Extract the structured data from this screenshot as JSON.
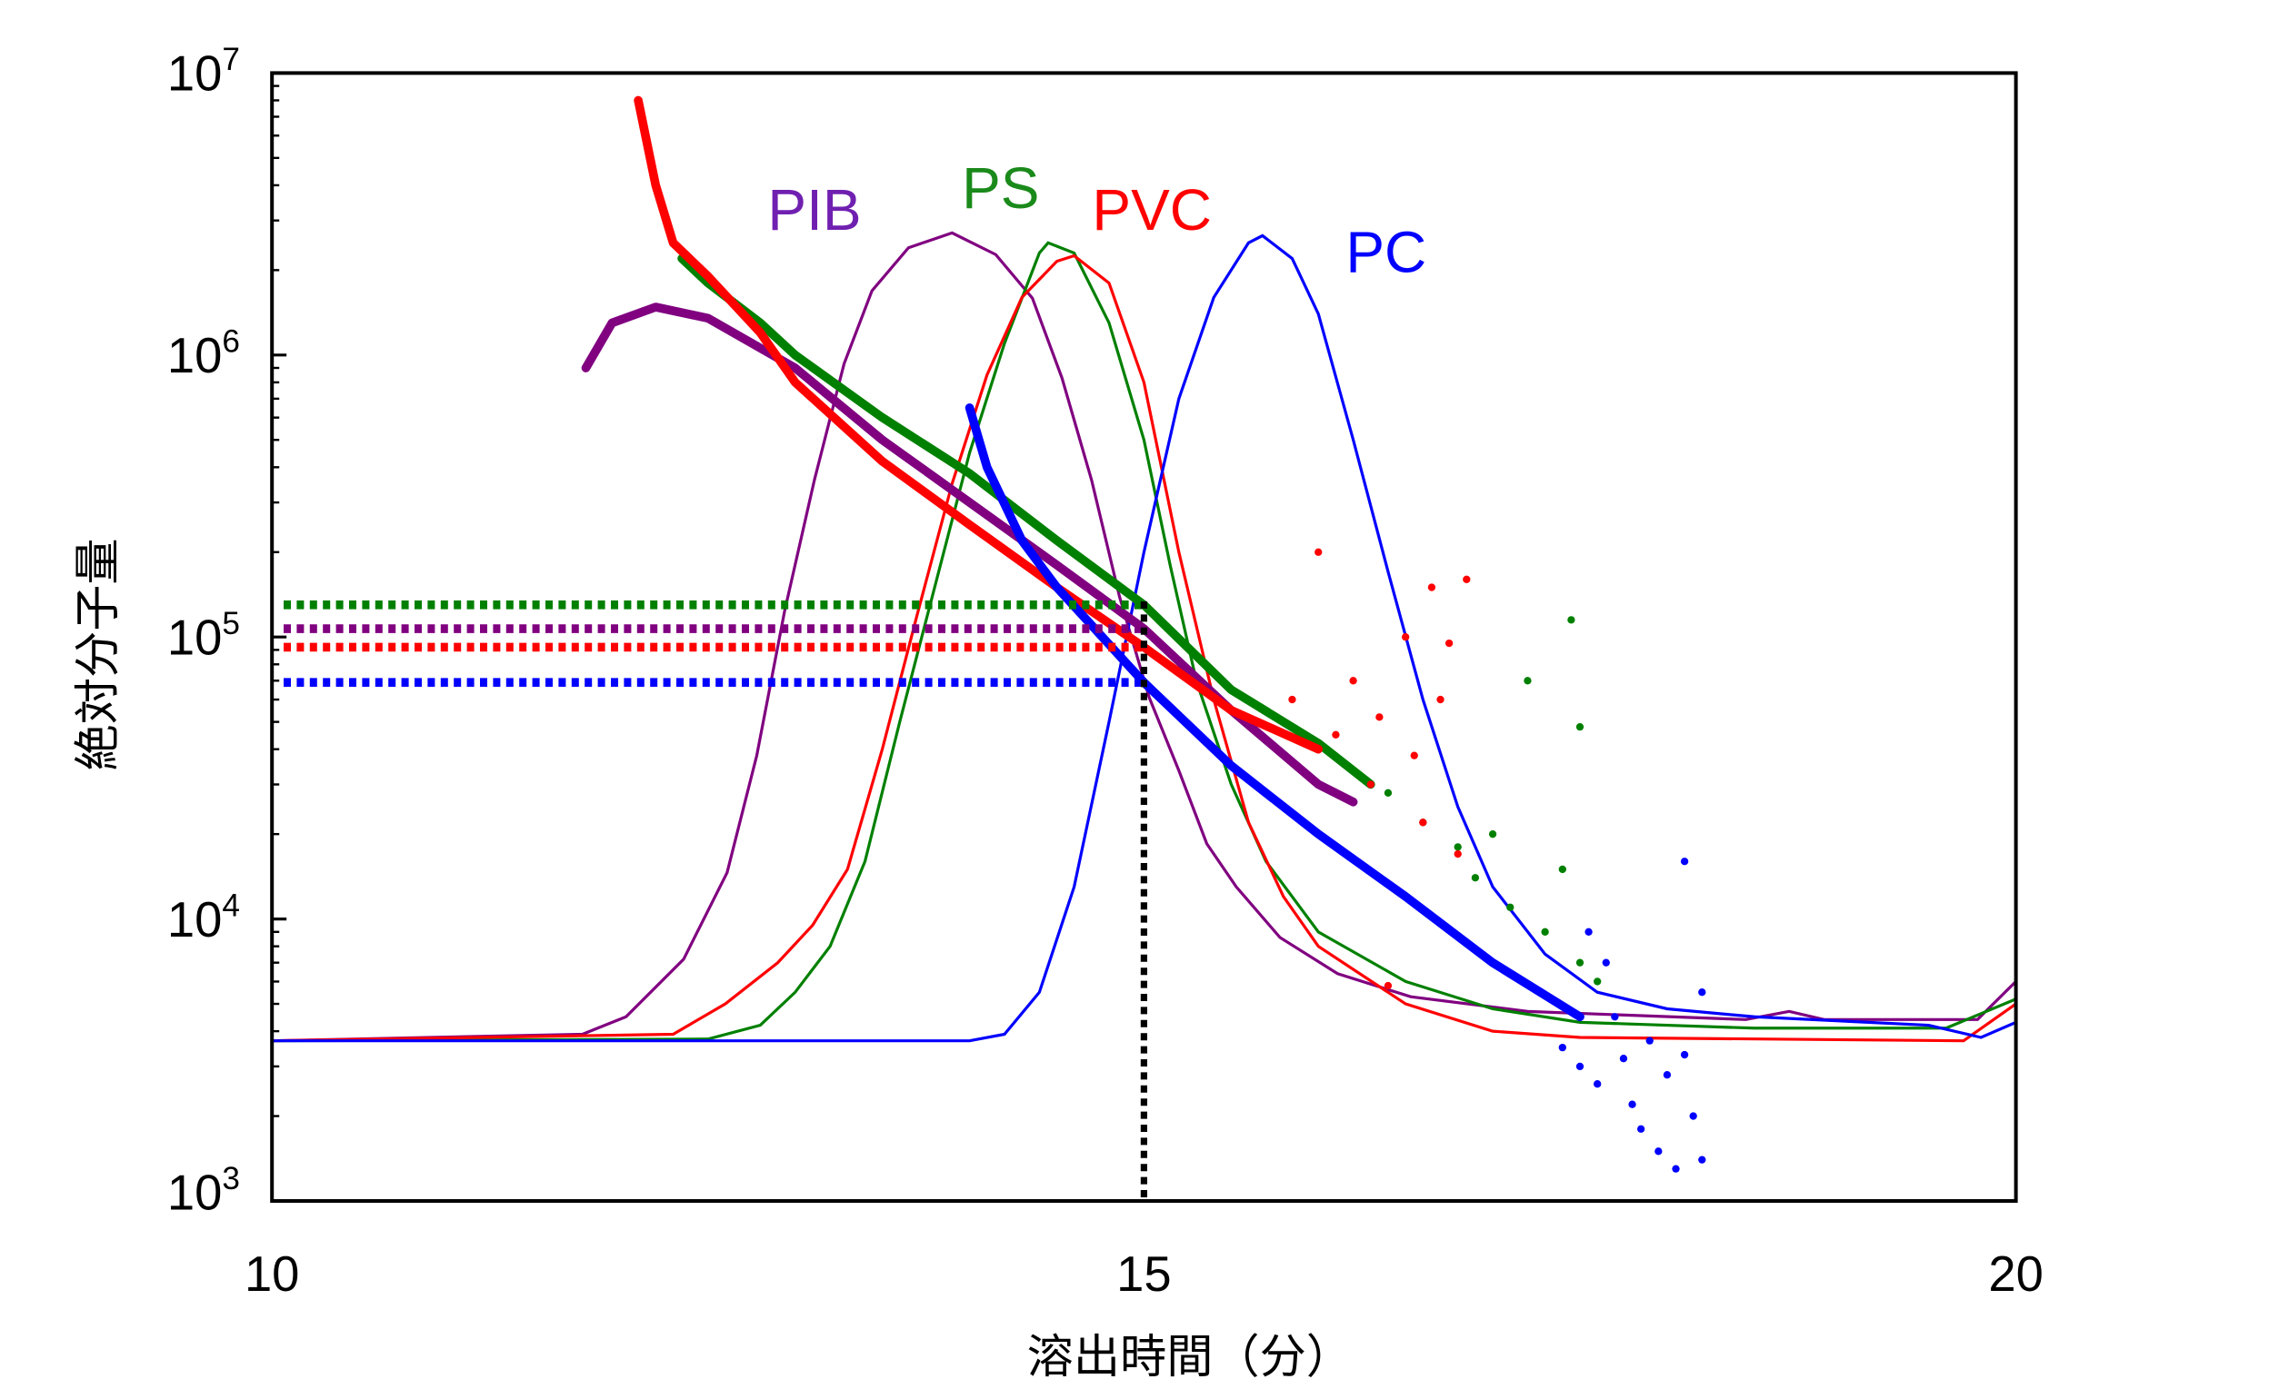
{
  "chart_data": {
    "type": "line",
    "xlabel": "溶出時間（分）",
    "ylabel": "絶対分子量",
    "xlim": [
      10,
      20
    ],
    "ylim": [
      1000,
      10000000
    ],
    "yscale": "log",
    "grid": false,
    "x_ticks": [
      {
        "value": 10,
        "label": "10"
      },
      {
        "value": 15,
        "label": "15"
      },
      {
        "value": 20,
        "label": "20"
      }
    ],
    "y_ticks": [
      {
        "value": 1000,
        "base": "10",
        "exp": "3"
      },
      {
        "value": 10000,
        "base": "10",
        "exp": "4"
      },
      {
        "value": 100000,
        "base": "10",
        "exp": "5"
      },
      {
        "value": 1000000,
        "base": "10",
        "exp": "6"
      },
      {
        "value": 10000000,
        "base": "10",
        "exp": "7"
      }
    ],
    "marker_time": 15,
    "series": [
      {
        "name": "PIB",
        "color": "#800080",
        "label_color": "#7020b0",
        "peak": [
          [
            10,
            3700
          ],
          [
            11.78,
            3900
          ],
          [
            12.03,
            4500
          ],
          [
            12.36,
            7200
          ],
          [
            12.61,
            14600
          ],
          [
            12.78,
            38000
          ],
          [
            12.94,
            124000
          ],
          [
            13.11,
            360000
          ],
          [
            13.28,
            930000
          ],
          [
            13.44,
            1690000
          ],
          [
            13.65,
            2400000
          ],
          [
            13.9,
            2710000
          ],
          [
            14.15,
            2270000
          ],
          [
            14.36,
            1590000
          ],
          [
            14.53,
            830000
          ],
          [
            14.7,
            360000
          ],
          [
            14.86,
            139000
          ],
          [
            15.03,
            61000
          ],
          [
            15.2,
            33600
          ],
          [
            15.36,
            18500
          ],
          [
            15.53,
            13000
          ],
          [
            15.78,
            8600
          ],
          [
            16.11,
            6400
          ],
          [
            16.53,
            5300
          ],
          [
            17.2,
            4700
          ],
          [
            18.45,
            4400
          ],
          [
            18.7,
            4700
          ],
          [
            18.9,
            4400
          ],
          [
            19.78,
            4400
          ],
          [
            20,
            6000
          ]
        ],
        "molecular_weight": [
          [
            11.8,
            900000
          ],
          [
            11.95,
            1300000
          ],
          [
            12.2,
            1480000
          ],
          [
            12.5,
            1350000
          ],
          [
            13.0,
            900000
          ],
          [
            13.5,
            500000
          ],
          [
            14.0,
            300000
          ],
          [
            14.5,
            180000
          ],
          [
            15.0,
            107000
          ],
          [
            15.5,
            55000
          ],
          [
            16.0,
            30000
          ],
          [
            16.2,
            26000
          ]
        ],
        "mw_at_marker": 107000
      },
      {
        "name": "PS",
        "color": "#008000",
        "label_color": "#1a8a1a",
        "peak": [
          [
            10,
            3700
          ],
          [
            12.5,
            3750
          ],
          [
            12.8,
            4200
          ],
          [
            13.0,
            5500
          ],
          [
            13.2,
            8000
          ],
          [
            13.4,
            16000
          ],
          [
            13.6,
            50000
          ],
          [
            13.8,
            150000
          ],
          [
            14.0,
            450000
          ],
          [
            14.2,
            1100000
          ],
          [
            14.4,
            2300000
          ],
          [
            14.45,
            2500000
          ],
          [
            14.6,
            2300000
          ],
          [
            14.8,
            1300000
          ],
          [
            15.0,
            500000
          ],
          [
            15.15,
            180000
          ],
          [
            15.3,
            70000
          ],
          [
            15.5,
            30000
          ],
          [
            15.7,
            16000
          ],
          [
            16.0,
            9000
          ],
          [
            16.5,
            6000
          ],
          [
            17.0,
            4800
          ],
          [
            17.5,
            4300
          ],
          [
            18.5,
            4100
          ],
          [
            19.6,
            4100
          ],
          [
            20,
            5200
          ]
        ],
        "molecular_weight": [
          [
            12.35,
            2200000
          ],
          [
            12.5,
            1800000
          ],
          [
            12.8,
            1300000
          ],
          [
            13.0,
            1000000
          ],
          [
            13.5,
            600000
          ],
          [
            14.0,
            380000
          ],
          [
            14.5,
            220000
          ],
          [
            15.0,
            130000
          ],
          [
            15.5,
            65000
          ],
          [
            16.0,
            42000
          ],
          [
            16.3,
            30000
          ]
        ],
        "mw_scatter": [
          [
            16.4,
            28000
          ],
          [
            16.6,
            22000
          ],
          [
            16.8,
            18000
          ],
          [
            16.9,
            14000
          ],
          [
            17.0,
            20000
          ],
          [
            17.1,
            11000
          ],
          [
            17.2,
            70000
          ],
          [
            17.3,
            9000
          ],
          [
            17.4,
            15000
          ],
          [
            17.45,
            115000
          ],
          [
            17.5,
            48000
          ],
          [
            17.5,
            7000
          ],
          [
            17.6,
            6000
          ]
        ],
        "mw_at_marker": 130000
      },
      {
        "name": "PVC",
        "color": "#ff0000",
        "label_color": "#ff0000",
        "peak": [
          [
            10,
            3700
          ],
          [
            12.3,
            3900
          ],
          [
            12.6,
            5000
          ],
          [
            12.9,
            7000
          ],
          [
            13.1,
            9500
          ],
          [
            13.3,
            15000
          ],
          [
            13.5,
            40000
          ],
          [
            13.7,
            120000
          ],
          [
            13.9,
            350000
          ],
          [
            14.1,
            850000
          ],
          [
            14.3,
            1600000
          ],
          [
            14.5,
            2150000
          ],
          [
            14.6,
            2250000
          ],
          [
            14.8,
            1800000
          ],
          [
            15.0,
            800000
          ],
          [
            15.2,
            200000
          ],
          [
            15.4,
            60000
          ],
          [
            15.6,
            22000
          ],
          [
            15.8,
            12000
          ],
          [
            16.0,
            8000
          ],
          [
            16.5,
            5000
          ],
          [
            17.0,
            4000
          ],
          [
            17.5,
            3800
          ],
          [
            19.7,
            3700
          ],
          [
            20,
            5000
          ]
        ],
        "molecular_weight": [
          [
            12.1,
            8000000
          ],
          [
            12.2,
            4000000
          ],
          [
            12.3,
            2500000
          ],
          [
            12.5,
            1900000
          ],
          [
            12.8,
            1200000
          ],
          [
            13.0,
            800000
          ],
          [
            13.5,
            420000
          ],
          [
            14.0,
            250000
          ],
          [
            14.5,
            150000
          ],
          [
            15.0,
            92000
          ],
          [
            15.5,
            55000
          ],
          [
            16.0,
            40000
          ]
        ],
        "mw_scatter": [
          [
            15.85,
            60000
          ],
          [
            16.0,
            200000
          ],
          [
            16.1,
            45000
          ],
          [
            16.2,
            70000
          ],
          [
            16.3,
            30000
          ],
          [
            16.35,
            52000
          ],
          [
            16.5,
            100000
          ],
          [
            16.55,
            38000
          ],
          [
            16.6,
            22000
          ],
          [
            16.65,
            150000
          ],
          [
            16.7,
            60000
          ],
          [
            16.75,
            95000
          ],
          [
            16.8,
            17000
          ],
          [
            16.85,
            160000
          ],
          [
            16.4,
            5800
          ]
        ],
        "mw_at_marker": 92000
      },
      {
        "name": "PC",
        "color": "#0000ff",
        "label_color": "#0000ff",
        "peak": [
          [
            10,
            3700
          ],
          [
            14.0,
            3700
          ],
          [
            14.2,
            3900
          ],
          [
            14.4,
            5500
          ],
          [
            14.6,
            13000
          ],
          [
            14.8,
            50000
          ],
          [
            15.0,
            200000
          ],
          [
            15.2,
            700000
          ],
          [
            15.4,
            1600000
          ],
          [
            15.6,
            2500000
          ],
          [
            15.68,
            2650000
          ],
          [
            15.85,
            2200000
          ],
          [
            16.0,
            1400000
          ],
          [
            16.2,
            500000
          ],
          [
            16.4,
            170000
          ],
          [
            16.6,
            60000
          ],
          [
            16.8,
            25000
          ],
          [
            17.0,
            13000
          ],
          [
            17.3,
            7500
          ],
          [
            17.6,
            5500
          ],
          [
            18.0,
            4800
          ],
          [
            18.5,
            4500
          ],
          [
            19.5,
            4200
          ],
          [
            19.8,
            3800
          ],
          [
            20,
            4300
          ]
        ],
        "molecular_weight": [
          [
            14.0,
            650000
          ],
          [
            14.1,
            400000
          ],
          [
            14.3,
            220000
          ],
          [
            14.5,
            150000
          ],
          [
            15.0,
            69000
          ],
          [
            15.5,
            35000
          ],
          [
            16.0,
            20000
          ],
          [
            16.5,
            12000
          ],
          [
            17.0,
            7000
          ],
          [
            17.5,
            4500
          ]
        ],
        "mw_scatter": [
          [
            17.4,
            3500
          ],
          [
            17.5,
            3000
          ],
          [
            17.6,
            2600
          ],
          [
            17.7,
            4500
          ],
          [
            17.75,
            3200
          ],
          [
            17.8,
            2200
          ],
          [
            17.85,
            1800
          ],
          [
            17.9,
            3700
          ],
          [
            17.95,
            1500
          ],
          [
            18.0,
            2800
          ],
          [
            18.05,
            1300
          ],
          [
            18.1,
            3300
          ],
          [
            18.1,
            16000
          ],
          [
            18.15,
            2000
          ],
          [
            18.2,
            5500
          ],
          [
            18.2,
            1400
          ],
          [
            17.65,
            7000
          ],
          [
            17.55,
            9000
          ]
        ],
        "mw_at_marker": 69000
      }
    ]
  }
}
